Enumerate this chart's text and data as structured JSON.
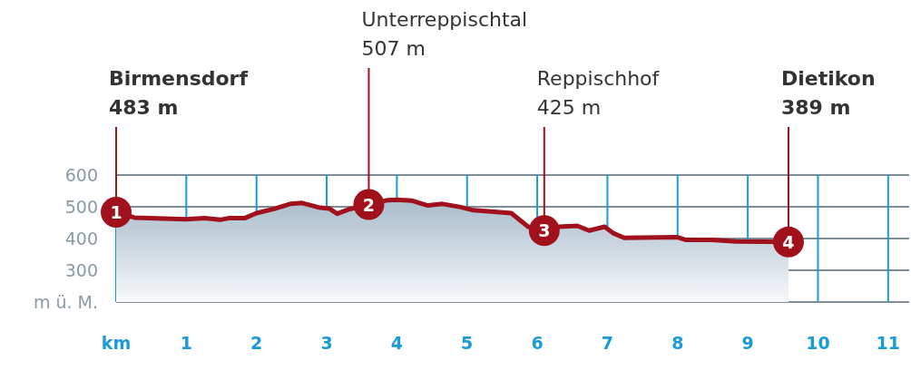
{
  "chart_data": {
    "type": "area",
    "x": [
      0,
      0.26,
      1.0,
      1.26,
      1.48,
      1.6,
      1.83,
      2.0,
      2.26,
      2.48,
      2.65,
      2.91,
      3.04,
      3.15,
      3.33,
      3.6,
      3.87,
      4.0,
      4.22,
      4.44,
      4.65,
      4.91,
      5.09,
      5.63,
      5.87,
      6.1,
      6.31,
      6.57,
      6.74,
      6.96,
      7.09,
      7.24,
      8.0,
      8.11,
      8.49,
      8.83,
      9.58
    ],
    "series": [
      {
        "color": "#a0111b",
        "values": [
          483,
          466,
          461,
          464,
          459,
          464,
          464,
          480,
          494,
          509,
          512,
          497,
          494,
          478,
          493,
          507,
          521,
          522,
          519,
          504,
          509,
          499,
          489,
          480,
          437,
          425,
          437,
          440,
          425,
          437,
          416,
          402,
          404,
          396,
          396,
          391,
          389
        ]
      }
    ],
    "xlim": [
      0,
      11.3
    ],
    "xticks": [
      {
        "value": 0,
        "label": "km"
      },
      1,
      2,
      3,
      4,
      5,
      6,
      7,
      8,
      9,
      10,
      11
    ],
    "ylim": [
      200,
      600
    ],
    "yticks": [
      {
        "value": 200,
        "label": "m ü. M."
      },
      300,
      400,
      500,
      600
    ],
    "grid": true,
    "annotations": [
      {
        "text": "1",
        "x": 0,
        "y": 483
      },
      {
        "text": "2",
        "x": 3.6,
        "y": 507
      },
      {
        "text": "3",
        "x": 6.1,
        "y": 425
      },
      {
        "text": "4",
        "x": 9.58,
        "y": 389
      },
      {
        "text": "Birmensdorf\n483 m",
        "x": 0,
        "y": 483
      },
      {
        "text": "Unterreppischtal\n507 m",
        "x": 3.6,
        "y": 507
      },
      {
        "text": "Reppischhof\n425 m",
        "x": 6.1,
        "y": 425
      },
      {
        "text": "Dietikon\n389 m",
        "x": 9.58,
        "y": 389
      }
    ]
  }
}
